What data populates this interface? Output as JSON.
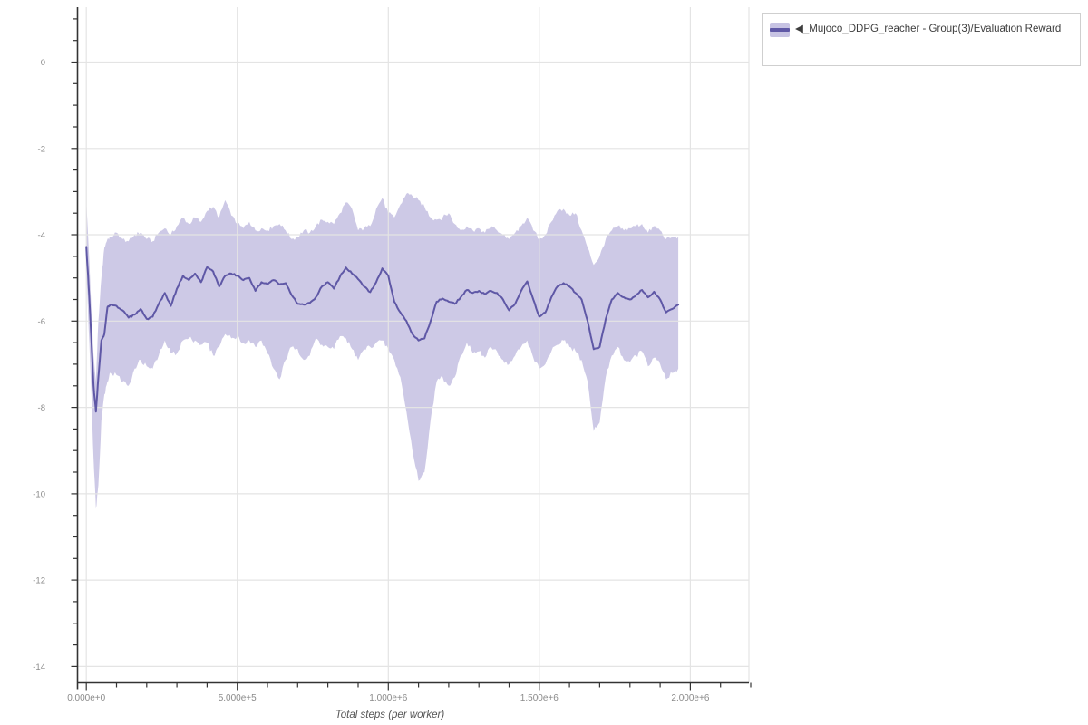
{
  "chart_data": {
    "type": "line",
    "title": "",
    "xlabel": "Total steps (per worker)",
    "ylabel": "",
    "grid": true,
    "legend_position": "top-right-outside",
    "xlim": [
      -29000,
      2194000
    ],
    "ylim": [
      -14.38,
      1.27
    ],
    "x_minor_step": 100000,
    "y_minor_step": 0.5,
    "x_ticks": [
      {
        "value": 0,
        "label": "0.000e+0"
      },
      {
        "value": 500000,
        "label": "5.000e+5"
      },
      {
        "value": 1000000,
        "label": "1.000e+6"
      },
      {
        "value": 1500000,
        "label": "1.500e+6"
      },
      {
        "value": 2000000,
        "label": "2.000e+6"
      }
    ],
    "y_ticks": [
      {
        "value": 0,
        "label": "0"
      },
      {
        "value": -2,
        "label": "-2"
      },
      {
        "value": -4,
        "label": "-4"
      },
      {
        "value": -6,
        "label": "-6"
      },
      {
        "value": -8,
        "label": "-8"
      },
      {
        "value": -10,
        "label": "-10"
      },
      {
        "value": -12,
        "label": "-12"
      },
      {
        "value": -14,
        "label": "-14"
      }
    ],
    "colors": {
      "line": "#5f58a6",
      "band": "#cdc9e6",
      "grid": "#e4e4e4",
      "axis": "#333333",
      "tick_label": "#8a8a8a",
      "swatch_fill": "#c7c3e3"
    },
    "series": [
      {
        "name": "◀_Mujoco_DDPG_reacher - Group(3)/Evaluation Reward",
        "color": "#5f58a6",
        "band_color": "#cdc9e6",
        "x": [
          0,
          8000,
          16000,
          24000,
          32000,
          40000,
          50000,
          60000,
          70000,
          80000,
          100000,
          120000,
          140000,
          160000,
          180000,
          200000,
          220000,
          240000,
          260000,
          280000,
          300000,
          320000,
          340000,
          360000,
          380000,
          400000,
          420000,
          440000,
          460000,
          480000,
          500000,
          520000,
          540000,
          560000,
          580000,
          600000,
          620000,
          640000,
          660000,
          680000,
          700000,
          720000,
          740000,
          760000,
          780000,
          800000,
          820000,
          840000,
          860000,
          880000,
          900000,
          920000,
          940000,
          960000,
          980000,
          1000000,
          1020000,
          1040000,
          1060000,
          1080000,
          1100000,
          1120000,
          1140000,
          1160000,
          1180000,
          1200000,
          1220000,
          1240000,
          1260000,
          1280000,
          1300000,
          1320000,
          1340000,
          1360000,
          1380000,
          1400000,
          1420000,
          1440000,
          1460000,
          1480000,
          1500000,
          1520000,
          1540000,
          1560000,
          1580000,
          1600000,
          1620000,
          1640000,
          1660000,
          1680000,
          1700000,
          1720000,
          1740000,
          1760000,
          1780000,
          1800000,
          1820000,
          1840000,
          1860000,
          1880000,
          1900000,
          1920000,
          1940000,
          1960000
        ],
        "mean": [
          -4.28,
          -5.2,
          -6.3,
          -7.5,
          -8.1,
          -7.3,
          -6.45,
          -6.3,
          -5.68,
          -5.62,
          -5.65,
          -5.75,
          -5.92,
          -5.85,
          -5.72,
          -5.95,
          -5.9,
          -5.6,
          -5.35,
          -5.65,
          -5.25,
          -4.95,
          -5.05,
          -4.9,
          -5.1,
          -4.75,
          -4.85,
          -5.2,
          -4.95,
          -4.9,
          -4.95,
          -5.05,
          -5.0,
          -5.3,
          -5.1,
          -5.15,
          -5.05,
          -5.15,
          -5.12,
          -5.4,
          -5.6,
          -5.62,
          -5.58,
          -5.45,
          -5.2,
          -5.1,
          -5.25,
          -4.97,
          -4.76,
          -4.9,
          -5.03,
          -5.2,
          -5.33,
          -5.1,
          -4.78,
          -4.95,
          -5.55,
          -5.8,
          -6.0,
          -6.3,
          -6.45,
          -6.4,
          -6.0,
          -5.55,
          -5.48,
          -5.55,
          -5.6,
          -5.45,
          -5.28,
          -5.35,
          -5.3,
          -5.38,
          -5.3,
          -5.35,
          -5.5,
          -5.75,
          -5.6,
          -5.3,
          -5.08,
          -5.5,
          -5.9,
          -5.8,
          -5.45,
          -5.2,
          -5.12,
          -5.2,
          -5.35,
          -5.5,
          -6.0,
          -6.65,
          -6.6,
          -5.95,
          -5.5,
          -5.35,
          -5.45,
          -5.5,
          -5.4,
          -5.28,
          -5.45,
          -5.32,
          -5.5,
          -5.8,
          -5.72,
          -5.62
        ],
        "band_high": [
          -3.2,
          -4.3,
          -5.6,
          -6.8,
          -7.4,
          -6.0,
          -5.0,
          -4.3,
          -4.1,
          -4.05,
          -3.95,
          -4.1,
          -4.15,
          -4.0,
          -3.95,
          -4.1,
          -4.15,
          -3.95,
          -3.85,
          -4.0,
          -3.8,
          -3.6,
          -3.75,
          -3.6,
          -3.7,
          -3.45,
          -3.35,
          -3.6,
          -3.2,
          -3.55,
          -3.75,
          -3.85,
          -3.7,
          -3.9,
          -3.85,
          -3.9,
          -3.8,
          -3.75,
          -3.9,
          -4.1,
          -4.05,
          -3.9,
          -3.95,
          -3.8,
          -3.65,
          -3.7,
          -3.75,
          -3.5,
          -3.25,
          -3.4,
          -3.9,
          -3.85,
          -3.8,
          -3.4,
          -3.15,
          -3.5,
          -3.6,
          -3.3,
          -3.05,
          -3.1,
          -3.2,
          -3.35,
          -3.6,
          -3.65,
          -3.6,
          -3.5,
          -3.75,
          -3.9,
          -3.8,
          -3.9,
          -3.85,
          -3.95,
          -3.8,
          -3.9,
          -4.0,
          -4.1,
          -3.95,
          -3.8,
          -3.6,
          -3.9,
          -4.1,
          -4.0,
          -3.7,
          -3.45,
          -3.4,
          -3.55,
          -3.5,
          -3.9,
          -4.3,
          -4.7,
          -4.5,
          -4.1,
          -3.9,
          -3.8,
          -3.9,
          -3.85,
          -3.8,
          -3.75,
          -3.95,
          -3.8,
          -3.9,
          -4.1,
          -4.05,
          -4.05
        ],
        "band_low": [
          -4.75,
          -6.2,
          -7.5,
          -9.2,
          -10.35,
          -9.8,
          -8.3,
          -7.7,
          -7.4,
          -7.2,
          -7.25,
          -7.4,
          -7.5,
          -7.1,
          -6.9,
          -7.05,
          -7.1,
          -6.8,
          -6.45,
          -6.75,
          -6.75,
          -6.45,
          -6.4,
          -6.45,
          -6.55,
          -6.5,
          -6.8,
          -6.6,
          -6.3,
          -6.4,
          -6.35,
          -6.5,
          -6.45,
          -6.6,
          -6.45,
          -6.75,
          -7.1,
          -7.35,
          -6.9,
          -6.6,
          -6.65,
          -6.9,
          -6.8,
          -6.4,
          -6.55,
          -6.6,
          -6.65,
          -6.35,
          -6.4,
          -6.65,
          -6.9,
          -6.65,
          -6.6,
          -6.5,
          -6.45,
          -6.65,
          -6.9,
          -7.3,
          -8.1,
          -9.0,
          -9.7,
          -9.5,
          -8.3,
          -7.4,
          -7.3,
          -7.5,
          -7.3,
          -6.8,
          -6.5,
          -6.75,
          -6.7,
          -6.85,
          -6.6,
          -6.7,
          -6.9,
          -7.0,
          -6.8,
          -6.6,
          -6.45,
          -6.85,
          -7.1,
          -7.0,
          -6.7,
          -6.55,
          -6.45,
          -6.6,
          -6.7,
          -6.9,
          -7.4,
          -8.55,
          -8.35,
          -7.3,
          -6.8,
          -6.6,
          -6.9,
          -6.95,
          -6.8,
          -6.7,
          -7.05,
          -6.85,
          -7.0,
          -7.35,
          -7.2,
          -7.1
        ]
      }
    ]
  }
}
